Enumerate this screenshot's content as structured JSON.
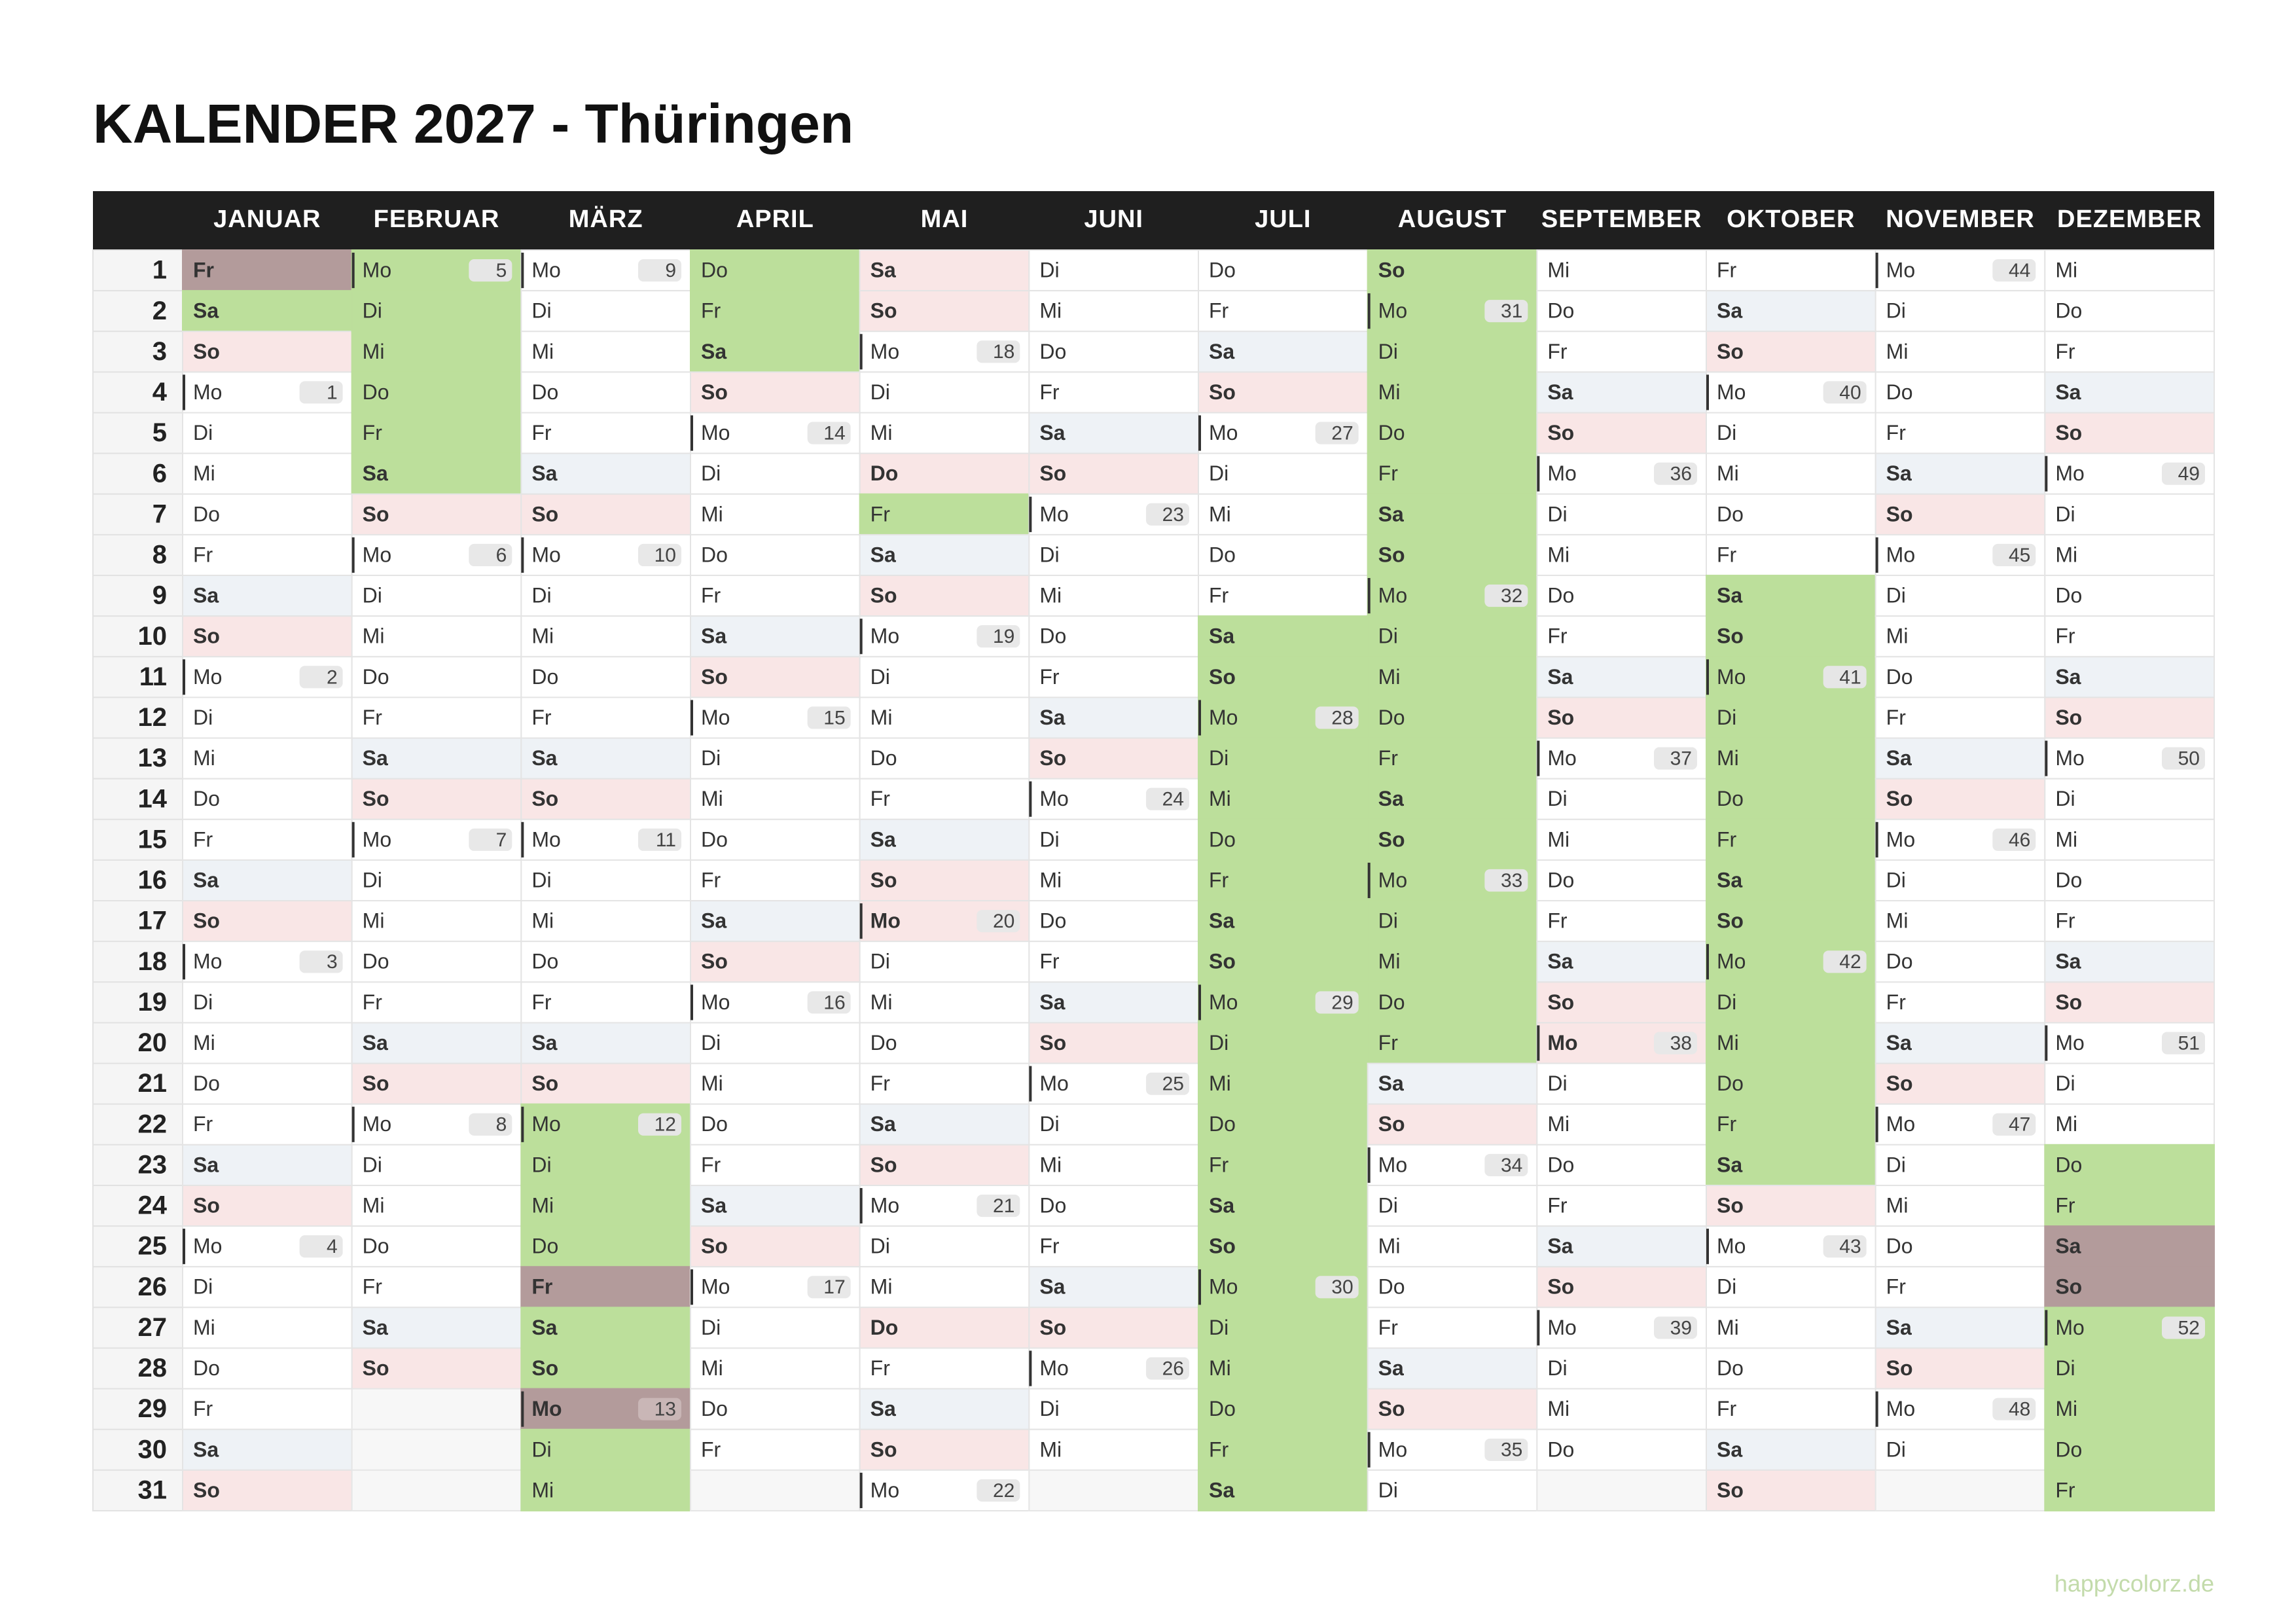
{
  "title": "KALENDER 2027 - Thüringen",
  "footer": "happycolorz.de",
  "weekdays": [
    "Mo",
    "Di",
    "Mi",
    "Do",
    "Fr",
    "Sa",
    "So"
  ],
  "rows": [
    1,
    2,
    3,
    4,
    5,
    6,
    7,
    8,
    9,
    10,
    11,
    12,
    13,
    14,
    15,
    16,
    17,
    18,
    19,
    20,
    21,
    22,
    23,
    24,
    25,
    26,
    27,
    28,
    29,
    30,
    31
  ],
  "months": [
    {
      "name": "JANUAR",
      "days": [
        "Fr",
        "Sa",
        "So",
        "Mo",
        "Di",
        "Mi",
        "Do",
        "Fr",
        "Sa",
        "So",
        "Mo",
        "Di",
        "Mi",
        "Do",
        "Fr",
        "Sa",
        "So",
        "Mo",
        "Di",
        "Mi",
        "Do",
        "Fr",
        "Sa",
        "So",
        "Mo",
        "Di",
        "Mi",
        "Do",
        "Fr",
        "Sa",
        "So"
      ],
      "weeks": [
        1,
        2,
        3,
        4
      ],
      "vacation": [
        [
          1,
          2
        ]
      ],
      "holiday": [
        1
      ]
    },
    {
      "name": "FEBRUAR",
      "days": [
        "Mo",
        "Di",
        "Mi",
        "Do",
        "Fr",
        "Sa",
        "So",
        "Mo",
        "Di",
        "Mi",
        "Do",
        "Fr",
        "Sa",
        "So",
        "Mo",
        "Di",
        "Mi",
        "Do",
        "Fr",
        "Sa",
        "So",
        "Mo",
        "Di",
        "Mi",
        "Do",
        "Fr",
        "Sa",
        "So"
      ],
      "weeks": [
        5,
        6,
        7,
        8
      ],
      "vacation": [
        [
          1,
          6
        ]
      ],
      "holiday": []
    },
    {
      "name": "MÄRZ",
      "days": [
        "Mo",
        "Di",
        "Mi",
        "Do",
        "Fr",
        "Sa",
        "So",
        "Mo",
        "Di",
        "Mi",
        "Do",
        "Fr",
        "Sa",
        "So",
        "Mo",
        "Di",
        "Mi",
        "Do",
        "Fr",
        "Sa",
        "So",
        "Mo",
        "Di",
        "Mi",
        "Do",
        "Fr",
        "Sa",
        "So",
        "Mo",
        "Di",
        "Mi"
      ],
      "weeks": [
        9,
        10,
        11,
        12,
        13
      ],
      "vacation": [
        [
          22,
          31
        ]
      ],
      "holiday": [
        26,
        29
      ]
    },
    {
      "name": "APRIL",
      "days": [
        "Do",
        "Fr",
        "Sa",
        "So",
        "Mo",
        "Di",
        "Mi",
        "Do",
        "Fr",
        "Sa",
        "So",
        "Mo",
        "Di",
        "Mi",
        "Do",
        "Fr",
        "Sa",
        "So",
        "Mo",
        "Di",
        "Mi",
        "Do",
        "Fr",
        "Sa",
        "So",
        "Mo",
        "Di",
        "Mi",
        "Do",
        "Fr"
      ],
      "weeks": [
        14,
        15,
        16,
        17
      ],
      "vacation": [
        [
          1,
          3
        ]
      ],
      "holiday": []
    },
    {
      "name": "MAI",
      "days": [
        "Sa",
        "So",
        "Mo",
        "Di",
        "Mi",
        "Do",
        "Fr",
        "Sa",
        "So",
        "Mo",
        "Di",
        "Mi",
        "Do",
        "Fr",
        "Sa",
        "So",
        "Mo",
        "Di",
        "Mi",
        "Do",
        "Fr",
        "Sa",
        "So",
        "Mo",
        "Di",
        "Mi",
        "Do",
        "Fr",
        "Sa",
        "So",
        "Mo"
      ],
      "weeks": [
        18,
        19,
        20,
        21,
        22
      ],
      "vacation": [
        [
          7,
          7
        ]
      ],
      "holiday": [
        1,
        6,
        17,
        27
      ]
    },
    {
      "name": "JUNI",
      "days": [
        "Di",
        "Mi",
        "Do",
        "Fr",
        "Sa",
        "So",
        "Mo",
        "Di",
        "Mi",
        "Do",
        "Fr",
        "Sa",
        "So",
        "Mo",
        "Di",
        "Mi",
        "Do",
        "Fr",
        "Sa",
        "So",
        "Mo",
        "Di",
        "Mi",
        "Do",
        "Fr",
        "Sa",
        "So",
        "Mo",
        "Di",
        "Mi"
      ],
      "weeks": [
        23,
        24,
        25,
        26
      ],
      "vacation": [],
      "holiday": []
    },
    {
      "name": "JULI",
      "days": [
        "Do",
        "Fr",
        "Sa",
        "So",
        "Mo",
        "Di",
        "Mi",
        "Do",
        "Fr",
        "Sa",
        "So",
        "Mo",
        "Di",
        "Mi",
        "Do",
        "Fr",
        "Sa",
        "So",
        "Mo",
        "Di",
        "Mi",
        "Do",
        "Fr",
        "Sa",
        "So",
        "Mo",
        "Di",
        "Mi",
        "Do",
        "Fr",
        "Sa"
      ],
      "weeks": [
        27,
        28,
        29,
        30
      ],
      "vacation": [
        [
          10,
          31
        ]
      ],
      "holiday": []
    },
    {
      "name": "AUGUST",
      "days": [
        "So",
        "Mo",
        "Di",
        "Mi",
        "Do",
        "Fr",
        "Sa",
        "So",
        "Mo",
        "Di",
        "Mi",
        "Do",
        "Fr",
        "Sa",
        "So",
        "Mo",
        "Di",
        "Mi",
        "Do",
        "Fr",
        "Sa",
        "So",
        "Mo",
        "Di",
        "Mi",
        "Do",
        "Fr",
        "Sa",
        "So",
        "Mo",
        "Di"
      ],
      "weeks": [
        31,
        32,
        33,
        34,
        35
      ],
      "vacation": [
        [
          1,
          20
        ]
      ],
      "holiday": []
    },
    {
      "name": "SEPTEMBER",
      "days": [
        "Mi",
        "Do",
        "Fr",
        "Sa",
        "So",
        "Mo",
        "Di",
        "Mi",
        "Do",
        "Fr",
        "Sa",
        "So",
        "Mo",
        "Di",
        "Mi",
        "Do",
        "Fr",
        "Sa",
        "So",
        "Mo",
        "Di",
        "Mi",
        "Do",
        "Fr",
        "Sa",
        "So",
        "Mo",
        "Di",
        "Mi",
        "Do"
      ],
      "weeks": [
        36,
        37,
        38,
        39
      ],
      "vacation": [],
      "holiday": [
        20
      ]
    },
    {
      "name": "OKTOBER",
      "days": [
        "Fr",
        "Sa",
        "So",
        "Mo",
        "Di",
        "Mi",
        "Do",
        "Fr",
        "Sa",
        "So",
        "Mo",
        "Di",
        "Mi",
        "Do",
        "Fr",
        "Sa",
        "So",
        "Mo",
        "Di",
        "Mi",
        "Do",
        "Fr",
        "Sa",
        "So",
        "Mo",
        "Di",
        "Mi",
        "Do",
        "Fr",
        "Sa",
        "So"
      ],
      "weeks": [
        40,
        41,
        42,
        43
      ],
      "vacation": [
        [
          9,
          23
        ]
      ],
      "holiday": [
        3,
        31
      ]
    },
    {
      "name": "NOVEMBER",
      "days": [
        "Mo",
        "Di",
        "Mi",
        "Do",
        "Fr",
        "Sa",
        "So",
        "Mo",
        "Di",
        "Mi",
        "Do",
        "Fr",
        "Sa",
        "So",
        "Mo",
        "Di",
        "Mi",
        "Do",
        "Fr",
        "Sa",
        "So",
        "Mo",
        "Di",
        "Mi",
        "Do",
        "Fr",
        "Sa",
        "So",
        "Mo",
        "Di"
      ],
      "weeks": [
        44,
        45,
        46,
        47,
        48
      ],
      "vacation": [],
      "holiday": []
    },
    {
      "name": "DEZEMBER",
      "days": [
        "Mi",
        "Do",
        "Fr",
        "Sa",
        "So",
        "Mo",
        "Di",
        "Mi",
        "Do",
        "Fr",
        "Sa",
        "So",
        "Mo",
        "Di",
        "Mi",
        "Do",
        "Fr",
        "Sa",
        "So",
        "Mo",
        "Di",
        "Mi",
        "Do",
        "Fr",
        "Sa",
        "So",
        "Mo",
        "Di",
        "Mi",
        "Do",
        "Fr"
      ],
      "weeks": [
        49,
        50,
        51,
        52
      ],
      "vacation": [
        [
          23,
          31
        ]
      ],
      "holiday": [
        25,
        26
      ]
    }
  ]
}
